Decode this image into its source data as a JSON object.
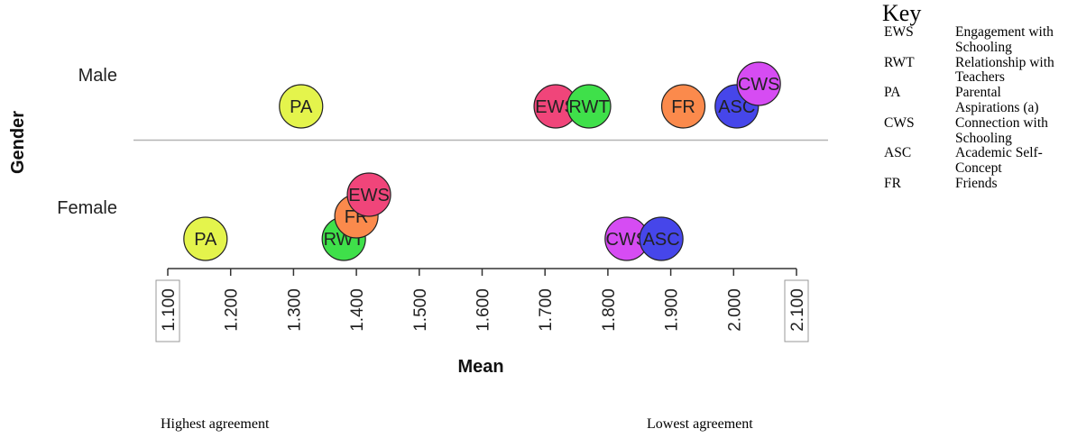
{
  "chart_data": {
    "type": "scatter",
    "xlabel": "Mean",
    "ylabel": "Gender",
    "xlim": [
      1.1,
      2.1
    ],
    "xticks": [
      "1.100",
      "1.200",
      "1.300",
      "1.400",
      "1.500",
      "1.600",
      "1.700",
      "1.800",
      "1.900",
      "2.000",
      "2.100"
    ],
    "ycategories": [
      "Male",
      "Female"
    ],
    "grid": false,
    "points": [
      {
        "label": "PA",
        "group": "Male",
        "x": 1.312,
        "color": "#e4f44c"
      },
      {
        "label": "EWS",
        "group": "Male",
        "x": 1.717,
        "color": "#f0457a"
      },
      {
        "label": "RWT",
        "group": "Male",
        "x": 1.77,
        "color": "#3fe04a"
      },
      {
        "label": "FR",
        "group": "Male",
        "x": 1.92,
        "color": "#fb8a4c"
      },
      {
        "label": "ASC",
        "group": "Male",
        "x": 2.005,
        "color": "#4646ea"
      },
      {
        "label": "CWS",
        "group": "Male",
        "x": 2.04,
        "color": "#d64cf3"
      },
      {
        "label": "PA",
        "group": "Female",
        "x": 1.16,
        "color": "#e4f44c"
      },
      {
        "label": "RWT",
        "group": "Female",
        "x": 1.38,
        "color": "#3fe04a"
      },
      {
        "label": "FR",
        "group": "Female",
        "x": 1.4,
        "color": "#fb8a4c"
      },
      {
        "label": "EWS",
        "group": "Female",
        "x": 1.42,
        "color": "#f0457a"
      },
      {
        "label": "ASC",
        "group": "Female",
        "x": 1.885,
        "color": "#4646ea"
      },
      {
        "label": "CWS",
        "group": "Female",
        "x": 1.83,
        "color": "#d64cf3"
      }
    ]
  },
  "key": {
    "title": "Key",
    "items": [
      {
        "abbr": "EWS",
        "desc": "Engagement with Schooling"
      },
      {
        "abbr": "RWT",
        "desc": "Relationship with Teachers"
      },
      {
        "abbr": "PA",
        "desc": "Parental Aspirations (a)"
      },
      {
        "abbr": "CWS",
        "desc": "Connection with Schooling"
      },
      {
        "abbr": "ASC",
        "desc": "Academic Self-Concept"
      },
      {
        "abbr": "FR",
        "desc": "Friends"
      }
    ]
  },
  "bottom": {
    "left_label": "Highest agreement",
    "right_label": "Lowest agreement"
  }
}
